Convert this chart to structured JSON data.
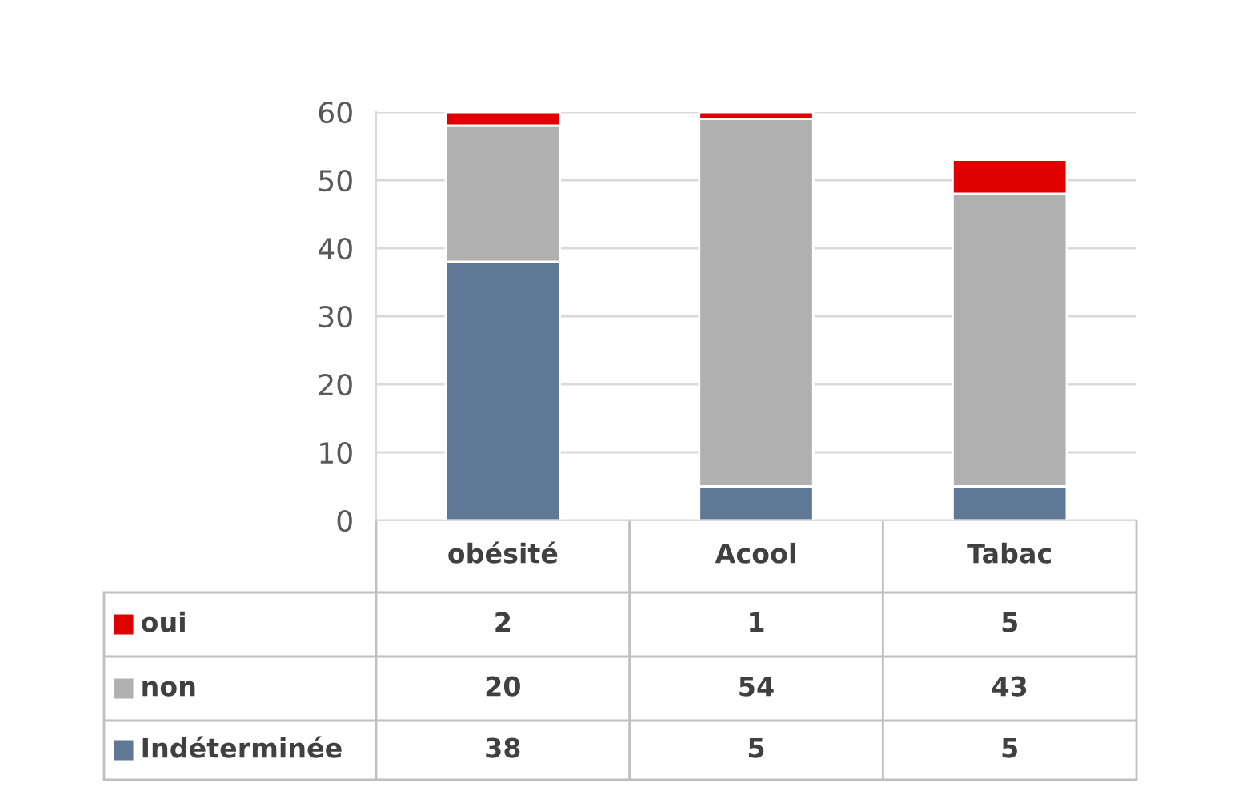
{
  "chart_data": {
    "type": "bar",
    "stacked": true,
    "categories": [
      "obésité",
      "Acool",
      "Tabac"
    ],
    "series": [
      {
        "name": "Indéterminée",
        "color": "#5f7896",
        "values": [
          38,
          5,
          5
        ]
      },
      {
        "name": "non",
        "color": "#b0b0b0",
        "values": [
          20,
          54,
          43
        ]
      },
      {
        "name": "oui",
        "color": "#e00000",
        "values": [
          2,
          1,
          5
        ]
      }
    ],
    "ylim": [
      0,
      60
    ],
    "yticks": [
      0,
      10,
      20,
      30,
      40,
      50,
      60
    ],
    "grid": "y",
    "data_labels": true,
    "legend": "bottom"
  }
}
